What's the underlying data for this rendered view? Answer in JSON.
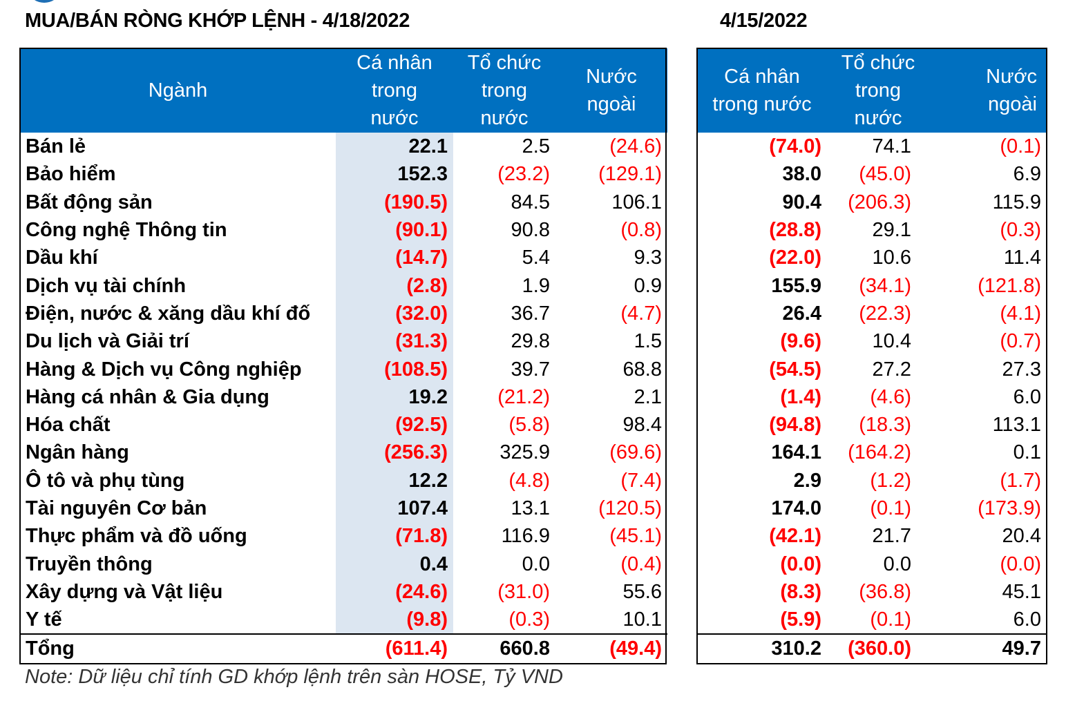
{
  "title_left": "MUA/BÁN RÒNG KHỚP LỆNH - 4/18/2022",
  "title_right": "4/15/2022",
  "left_headers": {
    "sector": "Ngành",
    "individual": [
      "Cá nhân",
      "trong",
      "nước"
    ],
    "institution": [
      "Tổ chức",
      "trong",
      "nước"
    ],
    "foreign": [
      "Nước",
      "ngoài"
    ]
  },
  "right_headers": {
    "individual": [
      "Cá nhân",
      "trong nước"
    ],
    "institution": [
      "Tổ chức",
      "trong",
      "nước"
    ],
    "foreign": [
      "Nước",
      "ngoài"
    ]
  },
  "rows": [
    {
      "sector": "Bán lẻ",
      "d1": [
        "22.1",
        "2.5",
        "(24.6)"
      ],
      "d2": [
        "(74.0)",
        "74.1",
        "(0.1)"
      ]
    },
    {
      "sector": "Bảo hiểm",
      "d1": [
        "152.3",
        "(23.2)",
        "(129.1)"
      ],
      "d2": [
        "38.0",
        "(45.0)",
        "6.9"
      ]
    },
    {
      "sector": "Bất động sản",
      "d1": [
        "(190.5)",
        "84.5",
        "106.1"
      ],
      "d2": [
        "90.4",
        "(206.3)",
        "115.9"
      ]
    },
    {
      "sector": "Công nghệ Thông tin",
      "d1": [
        "(90.1)",
        "90.8",
        "(0.8)"
      ],
      "d2": [
        "(28.8)",
        "29.1",
        "(0.3)"
      ]
    },
    {
      "sector": "Dầu khí",
      "d1": [
        "(14.7)",
        "5.4",
        "9.3"
      ],
      "d2": [
        "(22.0)",
        "10.6",
        "11.4"
      ]
    },
    {
      "sector": "Dịch vụ tài chính",
      "d1": [
        "(2.8)",
        "1.9",
        "0.9"
      ],
      "d2": [
        "155.9",
        "(34.1)",
        "(121.8)"
      ]
    },
    {
      "sector": "Điện, nước & xăng dầu khí đố",
      "d1": [
        "(32.0)",
        "36.7",
        "(4.7)"
      ],
      "d2": [
        "26.4",
        "(22.3)",
        "(4.1)"
      ]
    },
    {
      "sector": "Du lịch và Giải trí",
      "d1": [
        "(31.3)",
        "29.8",
        "1.5"
      ],
      "d2": [
        "(9.6)",
        "10.4",
        "(0.7)"
      ]
    },
    {
      "sector": "Hàng & Dịch vụ Công nghiệp",
      "d1": [
        "(108.5)",
        "39.7",
        "68.8"
      ],
      "d2": [
        "(54.5)",
        "27.2",
        "27.3"
      ]
    },
    {
      "sector": "Hàng cá nhân & Gia dụng",
      "d1": [
        "19.2",
        "(21.2)",
        "2.1"
      ],
      "d2": [
        "(1.4)",
        "(4.6)",
        "6.0"
      ]
    },
    {
      "sector": "Hóa chất",
      "d1": [
        "(92.5)",
        "(5.8)",
        "98.4"
      ],
      "d2": [
        "(94.8)",
        "(18.3)",
        "113.1"
      ]
    },
    {
      "sector": "Ngân hàng",
      "d1": [
        "(256.3)",
        "325.9",
        "(69.6)"
      ],
      "d2": [
        "164.1",
        "(164.2)",
        "0.1"
      ]
    },
    {
      "sector": "Ô tô và phụ tùng",
      "d1": [
        "12.2",
        "(4.8)",
        "(7.4)"
      ],
      "d2": [
        "2.9",
        "(1.2)",
        "(1.7)"
      ]
    },
    {
      "sector": "Tài nguyên Cơ bản",
      "d1": [
        "107.4",
        "13.1",
        "(120.5)"
      ],
      "d2": [
        "174.0",
        "(0.1)",
        "(173.9)"
      ]
    },
    {
      "sector": "Thực phẩm và đồ uống",
      "d1": [
        "(71.8)",
        "116.9",
        "(45.1)"
      ],
      "d2": [
        "(42.1)",
        "21.7",
        "20.4"
      ]
    },
    {
      "sector": "Truyền thông",
      "d1": [
        "0.4",
        "0.0",
        "(0.4)"
      ],
      "d2": [
        "(0.0)",
        "0.0",
        "(0.0)"
      ]
    },
    {
      "sector": "Xây dựng và Vật liệu",
      "d1": [
        "(24.6)",
        "(31.0)",
        "55.6"
      ],
      "d2": [
        "(8.3)",
        "(36.8)",
        "45.1"
      ]
    },
    {
      "sector": "Y tế",
      "d1": [
        "(9.8)",
        "(0.3)",
        "10.1"
      ],
      "d2": [
        "(5.9)",
        "(0.1)",
        "6.0"
      ]
    }
  ],
  "total": {
    "label": "Tổng",
    "d1": [
      "(611.4)",
      "660.8",
      "(49.4)"
    ],
    "d2": [
      "310.2",
      "(360.0)",
      "49.7"
    ]
  },
  "note": "Note: Dữ liệu chỉ tính GD khớp lệnh trên sàn HOSE, Tỷ VND",
  "colors": {
    "header_bg": "#0070c0",
    "negative": "#ff0000",
    "highlight_col": "#dce6f1"
  }
}
